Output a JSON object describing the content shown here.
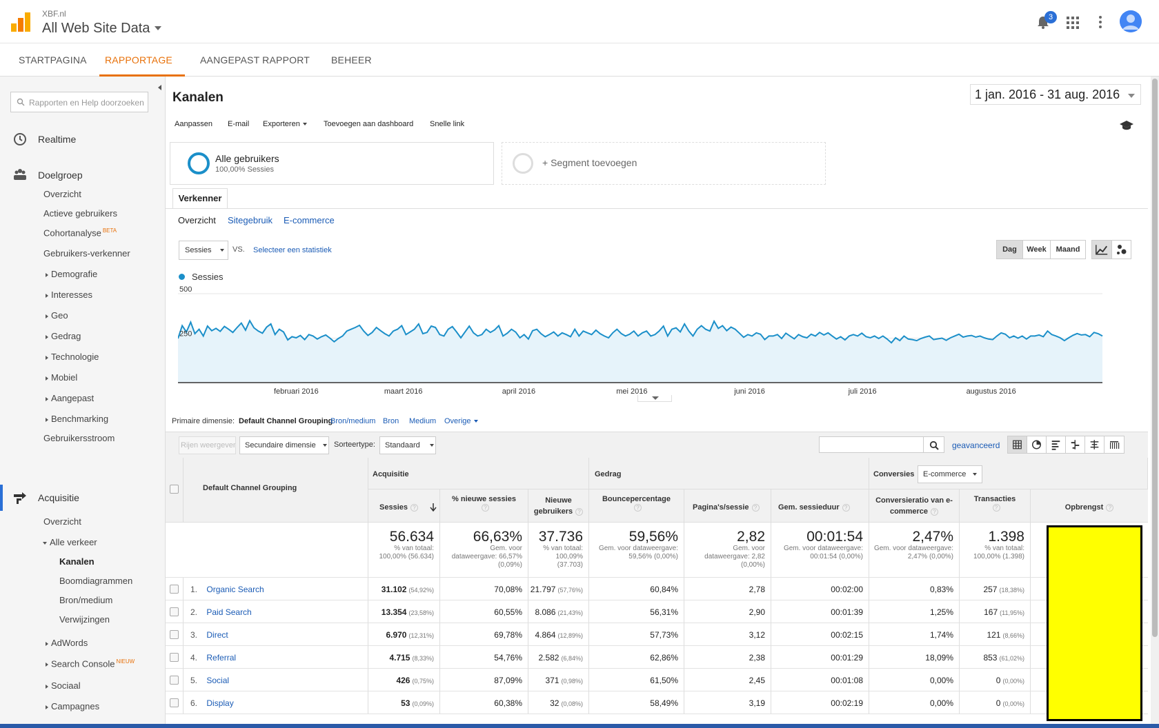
{
  "header": {
    "account": "XBF.nl",
    "property": "All Web Site Data",
    "notifications": "3",
    "icons": {
      "logo": "analytics-logo",
      "notifications": "bell-icon",
      "apps": "apps-grid-icon",
      "more": "more-vert-icon",
      "avatar": "avatar-icon"
    }
  },
  "nav_tabs": [
    "STARTPAGINA",
    "RAPPORTAGE",
    "AANGEPAST RAPPORT",
    "BEHEER"
  ],
  "sidebar": {
    "search_placeholder": "Rapporten en Help doorzoeken",
    "realtime": "Realtime",
    "doelgroep": "Doelgroep",
    "doelgroep_items": [
      "Overzicht",
      "Actieve gebruikers",
      "Cohortanalyse",
      "Gebruikers-verkenner",
      "Demografie",
      "Interesses",
      "Geo",
      "Gedrag",
      "Technologie",
      "Mobiel",
      "Aangepast",
      "Benchmarking",
      "Gebruikersstroom"
    ],
    "beta": "BETA",
    "acquisitie": "Acquisitie",
    "acq_overzicht": "Overzicht",
    "alle_verkeer": "Alle verkeer",
    "alle_verkeer_items": [
      "Kanalen",
      "Boomdiagrammen",
      "Bron/medium",
      "Verwijzingen"
    ],
    "acq_more": [
      "AdWords",
      "Search Console",
      "Sociaal",
      "Campagnes"
    ],
    "nieuw": "NIEUW"
  },
  "report": {
    "title": "Kanalen",
    "daterange": "1 jan. 2016 - 31 aug. 2016",
    "toolbar": [
      "Aanpassen",
      "E-mail",
      "Exporteren",
      "Toevoegen aan dashboard",
      "Snelle link"
    ],
    "segment_name": "Alle gebruikers",
    "segment_sub": "100,00% Sessies",
    "add_segment": "+ Segment toevoegen",
    "explorer_tab": "Verkenner",
    "subtabs": [
      "Overzicht",
      "Sitegebruik",
      "E-commerce"
    ],
    "metric": "Sessies",
    "vs": "VS.",
    "select_metric": "Selecteer een statistiek",
    "periods": [
      "Dag",
      "Week",
      "Maand"
    ],
    "primary_dim_label": "Primaire dimensie:",
    "primary_dim": "Default Channel Grouping",
    "dim_links": [
      "Bron/medium",
      "Bron",
      "Medium",
      "Overige"
    ],
    "rows_btn": "Rijen weergeven",
    "secondary_dim": "Secundaire dimensie",
    "sorttype_label": "Sorteertype:",
    "sorttype": "Standaard",
    "advanced": "geavanceerd"
  },
  "chart_data": {
    "type": "line",
    "series": [
      {
        "name": "Sessies",
        "values": [
          248,
          320,
          285,
          340,
          275,
          300,
          262,
          318,
          292,
          305,
          288,
          316,
          300,
          282,
          310,
          335,
          295,
          348,
          308,
          290,
          278,
          312,
          330,
          270,
          300,
          285,
          240,
          258,
          252,
          265,
          242,
          270,
          262,
          245,
          258,
          268,
          250,
          230,
          248,
          262,
          290,
          300,
          310,
          322,
          290,
          265,
          282,
          310,
          292,
          275,
          262,
          290,
          300,
          320,
          270,
          285,
          300,
          330,
          275,
          282,
          318,
          310,
          270,
          262,
          300,
          315,
          285,
          252,
          285,
          318,
          280,
          262,
          270,
          300,
          282,
          296,
          320,
          262,
          278,
          300,
          284,
          252,
          270,
          245,
          292,
          300,
          275,
          258,
          270,
          285,
          262,
          280,
          270,
          258,
          300,
          262,
          290,
          280,
          270,
          295,
          275,
          262,
          252,
          280,
          300,
          276,
          262,
          272,
          290,
          262,
          280,
          290,
          262,
          270,
          290,
          318,
          262,
          300,
          308,
          285,
          330,
          290,
          262,
          300,
          320,
          300,
          290,
          345,
          305,
          320,
          292,
          312,
          300,
          278,
          255,
          270,
          262,
          280,
          272,
          242,
          262,
          262,
          270,
          248,
          278,
          262,
          246,
          270,
          258,
          252,
          272,
          262,
          282,
          268,
          280,
          262,
          245,
          258,
          240,
          262,
          270,
          262,
          278,
          258,
          252,
          262,
          248,
          262,
          245,
          224,
          252,
          236,
          262,
          245,
          242,
          236,
          248,
          256,
          262,
          242,
          246,
          250,
          238,
          252,
          262,
          272,
          256,
          262,
          265,
          256,
          262,
          252,
          245,
          242,
          262,
          280,
          272,
          252,
          262,
          250,
          262,
          245,
          262,
          262,
          268,
          258,
          290,
          270,
          262,
          252,
          236,
          252,
          266,
          276,
          268,
          270,
          258,
          282,
          275,
          262
        ]
      }
    ],
    "x_tick_labels": [
      "februari 2016",
      "maart 2016",
      "april 2016",
      "mei 2016",
      "juni 2016",
      "juli 2016",
      "augustus 2016"
    ],
    "y_tick_labels": [
      "500",
      "250"
    ],
    "ylim": [
      0,
      500
    ],
    "grid": true,
    "legend": "top-left"
  },
  "table": {
    "dim_header": "Default Channel Grouping",
    "groups": {
      "acquisitie": "Acquisitie",
      "gedrag": "Gedrag",
      "conversies": "Conversies",
      "conv_select": "E-commerce"
    },
    "headers": [
      "Sessies",
      "% nieuwe sessies",
      "Nieuwe gebruikers",
      "Bouncepercentage",
      "Pagina's/sessie",
      "Gem. sessieduur",
      "Conversieratio van e-commerce",
      "Transacties",
      "Opbrengst"
    ],
    "totals": [
      {
        "v": "56.634",
        "s": "% van totaal: 100,00% (56.634)"
      },
      {
        "v": "66,63%",
        "s": "Gem. voor dataweergave: 66,57% (0,09%)"
      },
      {
        "v": "37.736",
        "s": "% van totaal: 100,09% (37.703)"
      },
      {
        "v": "59,56%",
        "s": "Gem. voor dataweergave: 59,56% (0,00%)"
      },
      {
        "v": "2,82",
        "s": "Gem. voor dataweergave: 2,82 (0,00%)"
      },
      {
        "v": "00:01:54",
        "s": "Gem. voor dataweergave: 00:01:54 (0,00%)"
      },
      {
        "v": "2,47%",
        "s": "Gem. voor dataweergave: 2,47% (0,00%)"
      },
      {
        "v": "1.398",
        "s": "% van totaal: 100,00% (1.398)"
      }
    ],
    "rows": [
      {
        "n": "1.",
        "label": "Organic Search",
        "sessies": "31.102",
        "sessies_pct": "(54,92%)",
        "new_sess": "70,08%",
        "new_users": "21.797",
        "new_users_pct": "(57,76%)",
        "bounce": "60,84%",
        "pages": "2,78",
        "dur": "00:02:00",
        "conv": "0,83%",
        "trans": "257",
        "trans_pct": "(18,38%)"
      },
      {
        "n": "2.",
        "label": "Paid Search",
        "sessies": "13.354",
        "sessies_pct": "(23,58%)",
        "new_sess": "60,55%",
        "new_users": "8.086",
        "new_users_pct": "(21,43%)",
        "bounce": "56,31%",
        "pages": "2,90",
        "dur": "00:01:39",
        "conv": "1,25%",
        "trans": "167",
        "trans_pct": "(11,95%)"
      },
      {
        "n": "3.",
        "label": "Direct",
        "sessies": "6.970",
        "sessies_pct": "(12,31%)",
        "new_sess": "69,78%",
        "new_users": "4.864",
        "new_users_pct": "(12,89%)",
        "bounce": "57,73%",
        "pages": "3,12",
        "dur": "00:02:15",
        "conv": "1,74%",
        "trans": "121",
        "trans_pct": "(8,66%)"
      },
      {
        "n": "4.",
        "label": "Referral",
        "sessies": "4.715",
        "sessies_pct": "(8,33%)",
        "new_sess": "54,76%",
        "new_users": "2.582",
        "new_users_pct": "(6,84%)",
        "bounce": "62,86%",
        "pages": "2,38",
        "dur": "00:01:29",
        "conv": "18,09%",
        "trans": "853",
        "trans_pct": "(61,02%)"
      },
      {
        "n": "5.",
        "label": "Social",
        "sessies": "426",
        "sessies_pct": "(0,75%)",
        "new_sess": "87,09%",
        "new_users": "371",
        "new_users_pct": "(0,98%)",
        "bounce": "61,50%",
        "pages": "2,45",
        "dur": "00:01:08",
        "conv": "0,00%",
        "trans": "0",
        "trans_pct": "(0,00%)"
      },
      {
        "n": "6.",
        "label": "Display",
        "sessies": "53",
        "sessies_pct": "(0,09%)",
        "new_sess": "60,38%",
        "new_users": "32",
        "new_users_pct": "(0,08%)",
        "bounce": "58,49%",
        "pages": "3,19",
        "dur": "00:02:19",
        "conv": "0,00%",
        "trans": "0",
        "trans_pct": "(0,00%)"
      }
    ]
  }
}
